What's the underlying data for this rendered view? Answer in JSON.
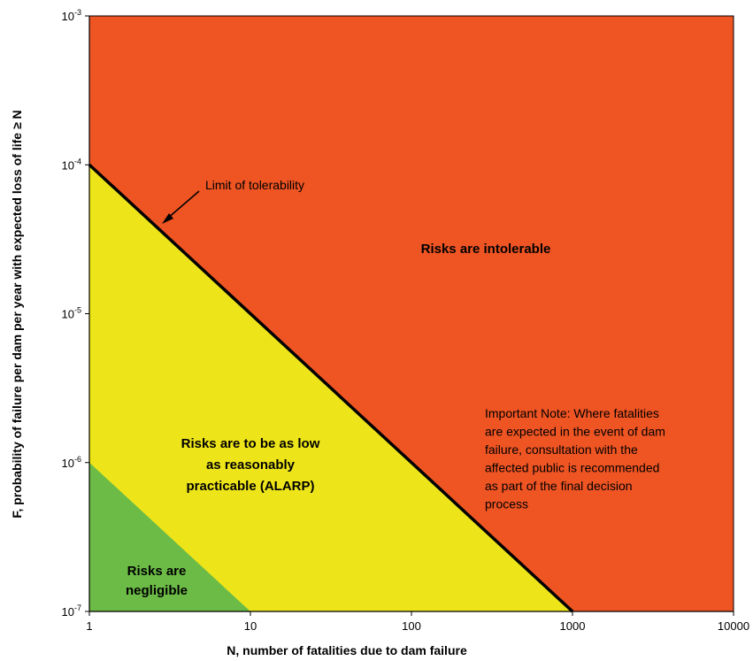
{
  "chart_data": {
    "type": "area",
    "title": "",
    "xlabel": "N, number of fatalities due to dam failure",
    "ylabel": "F, probability of failure per dam per year with expected loss of life ≥ N",
    "x_scale": "log",
    "y_scale": "log",
    "xlim": [
      1,
      10000
    ],
    "ylim": [
      1e-07,
      0.001
    ],
    "x_ticks": [
      {
        "value": 1,
        "label": "1"
      },
      {
        "value": 10,
        "label": "10"
      },
      {
        "value": 100,
        "label": "100"
      },
      {
        "value": 1000,
        "label": "1000"
      },
      {
        "value": 10000,
        "label": "10000"
      }
    ],
    "y_ticks": [
      {
        "value": 0.001,
        "base": "10",
        "exp": "-3"
      },
      {
        "value": 0.0001,
        "base": "10",
        "exp": "-4"
      },
      {
        "value": 1e-05,
        "base": "10",
        "exp": "-5"
      },
      {
        "value": 1e-06,
        "base": "10",
        "exp": "-6"
      },
      {
        "value": 1e-07,
        "base": "10",
        "exp": "-7"
      }
    ],
    "grid": false,
    "regions": [
      {
        "name": "intolerable",
        "label": "Risks are intolerable",
        "color": "#EF5423"
      },
      {
        "name": "alarp",
        "label": "Risks are to be as low as reasonably practicable (ALARP)",
        "color": "#EDE51A"
      },
      {
        "name": "negligible",
        "label": "Risks are negligible",
        "color": "#6CBB46"
      }
    ],
    "lines": [
      {
        "name": "limit-of-tolerability",
        "label": "Limit of tolerability",
        "points": [
          [
            1,
            0.0001
          ],
          [
            1000,
            1e-07
          ]
        ],
        "color": "#000000"
      },
      {
        "name": "negligible-boundary",
        "points": [
          [
            1,
            1e-06
          ],
          [
            10,
            1e-07
          ]
        ]
      }
    ],
    "labels": {
      "intolerable": [
        "Risks are intolerable"
      ],
      "alarp": [
        "Risks are to be as low",
        "as reasonably",
        "practicable (ALARP)"
      ],
      "negligible": [
        "Risks are",
        "negligible"
      ],
      "limit": "Limit of tolerability"
    },
    "annotation": {
      "lines": [
        "Important Note: Where fatalities",
        "are expected in the event of dam",
        "failure, consultation with the",
        "affected public is recommended",
        "as part of the final decision",
        "process"
      ]
    }
  }
}
